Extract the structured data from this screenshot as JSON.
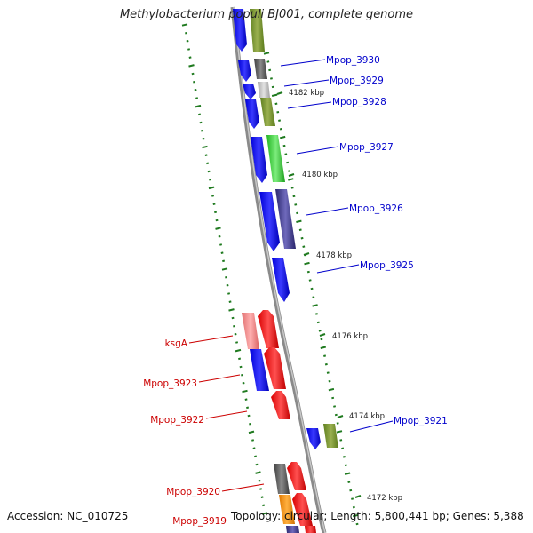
{
  "title": "Methylobacterium populi BJ001, complete genome",
  "footer": {
    "accession_label": "Accession:",
    "accession": "NC_010725",
    "topology_label": "Topology:",
    "topology": "circular",
    "length_label": "Length:",
    "length": "5,800,441 bp",
    "genes_label": "Genes:",
    "genes": "5,388"
  },
  "colors": {
    "backbone": "#8c8c8c",
    "tick": "#1f7a1f",
    "label_forward": "#0000cc",
    "label_reverse": "#cc0000"
  },
  "kbp_markers": [
    "4182 kbp",
    "4180 kbp",
    "4178 kbp",
    "4176 kbp",
    "4174 kbp",
    "4172 kbp"
  ],
  "genes_right": [
    {
      "label": "Mpop_3930"
    },
    {
      "label": "Mpop_3929"
    },
    {
      "label": "Mpop_3928"
    },
    {
      "label": "Mpop_3927"
    },
    {
      "label": "Mpop_3926"
    },
    {
      "label": "Mpop_3925"
    },
    {
      "label": "Mpop_3921"
    }
  ],
  "genes_left": [
    {
      "label": "ksgA"
    },
    {
      "label": "Mpop_3923"
    },
    {
      "label": "Mpop_3922"
    },
    {
      "label": "Mpop_3920"
    },
    {
      "label": "Mpop_3919"
    }
  ]
}
